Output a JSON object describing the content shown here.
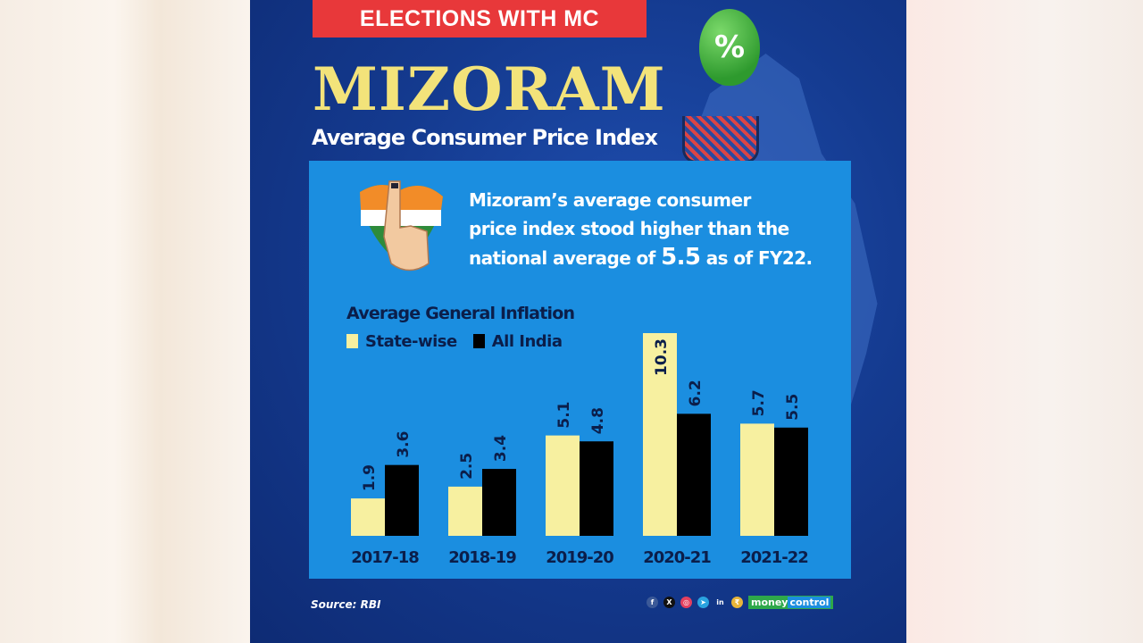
{
  "banner": "ELECTIONS WITH MC",
  "title": "MIZORAM",
  "subtitle": "Average Consumer Price Index",
  "balloon_symbol": "%",
  "intro": {
    "line1": "Mizoram’s average consumer",
    "line2": "price index stood higher than the",
    "line3_pre": "national average of ",
    "line3_value": "5.5",
    "line3_post": " as of FY22."
  },
  "source": "Source: RBI",
  "brand": {
    "part1": "money",
    "part2": "control"
  },
  "social_icons": [
    "facebook-icon",
    "x-icon",
    "instagram-icon",
    "telegram-icon",
    "linkedin-icon",
    "moneycontrol-icon"
  ],
  "colors": {
    "state": "#f7f0a0",
    "india": "#000000",
    "box": "#1b8ee0",
    "panel": "#143a8f",
    "banner": "#e8383a",
    "title": "#f3e37a"
  },
  "chart_data": {
    "type": "bar",
    "title": "Average General Inflation",
    "categories": [
      "2017-18",
      "2018-19",
      "2019-20",
      "2020-21",
      "2021-22"
    ],
    "series": [
      {
        "name": "State-wise",
        "values": [
          1.9,
          2.5,
          5.1,
          10.3,
          5.7
        ]
      },
      {
        "name": "All India",
        "values": [
          3.6,
          3.4,
          4.8,
          6.2,
          5.5
        ]
      }
    ],
    "ylim": [
      0,
      10.3
    ],
    "grid": false,
    "legend": "top-left"
  }
}
